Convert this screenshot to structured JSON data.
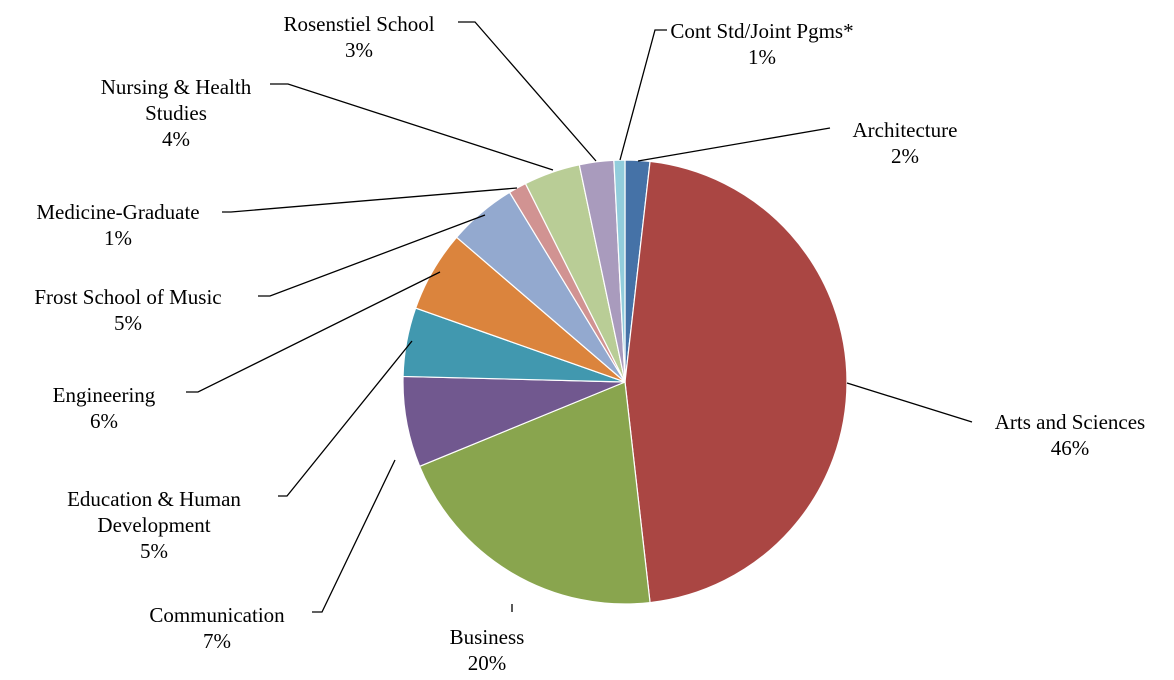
{
  "chart_data": {
    "type": "pie",
    "title": "",
    "slices": [
      {
        "label_lines": [
          "Architecture"
        ],
        "pct_label": "2%",
        "value": 1.8,
        "color": "#4572A7"
      },
      {
        "label_lines": [
          "Arts and Sciences"
        ],
        "pct_label": "46%",
        "value": 46.4,
        "color": "#AA4643"
      },
      {
        "label_lines": [
          "Business"
        ],
        "pct_label": "20%",
        "value": 20.6,
        "color": "#89A54E"
      },
      {
        "label_lines": [
          "Communication"
        ],
        "pct_label": "7%",
        "value": 6.6,
        "color": "#71588F"
      },
      {
        "label_lines": [
          "Education & Human",
          "Development"
        ],
        "pct_label": "5%",
        "value": 5.0,
        "color": "#4198AF"
      },
      {
        "label_lines": [
          "Engineering"
        ],
        "pct_label": "6%",
        "value": 5.9,
        "color": "#DB843D"
      },
      {
        "label_lines": [
          "Frost School of Music"
        ],
        "pct_label": "5%",
        "value": 5.0,
        "color": "#93A9CF"
      },
      {
        "label_lines": [
          "Medicine-Graduate"
        ],
        "pct_label": "1%",
        "value": 1.3,
        "color": "#D19392"
      },
      {
        "label_lines": [
          "Nursing & Health",
          "Studies"
        ],
        "pct_label": "4%",
        "value": 4.1,
        "color": "#B9CD96"
      },
      {
        "label_lines": [
          "Rosenstiel School"
        ],
        "pct_label": "3%",
        "value": 2.5,
        "color": "#A99BBD"
      },
      {
        "label_lines": [
          "Cont Std/Joint Pgms*"
        ],
        "pct_label": "1%",
        "value": 0.8,
        "color": "#92CDDC"
      }
    ],
    "start_angle_deg": 0,
    "direction": "clockwise",
    "legend": "none"
  }
}
